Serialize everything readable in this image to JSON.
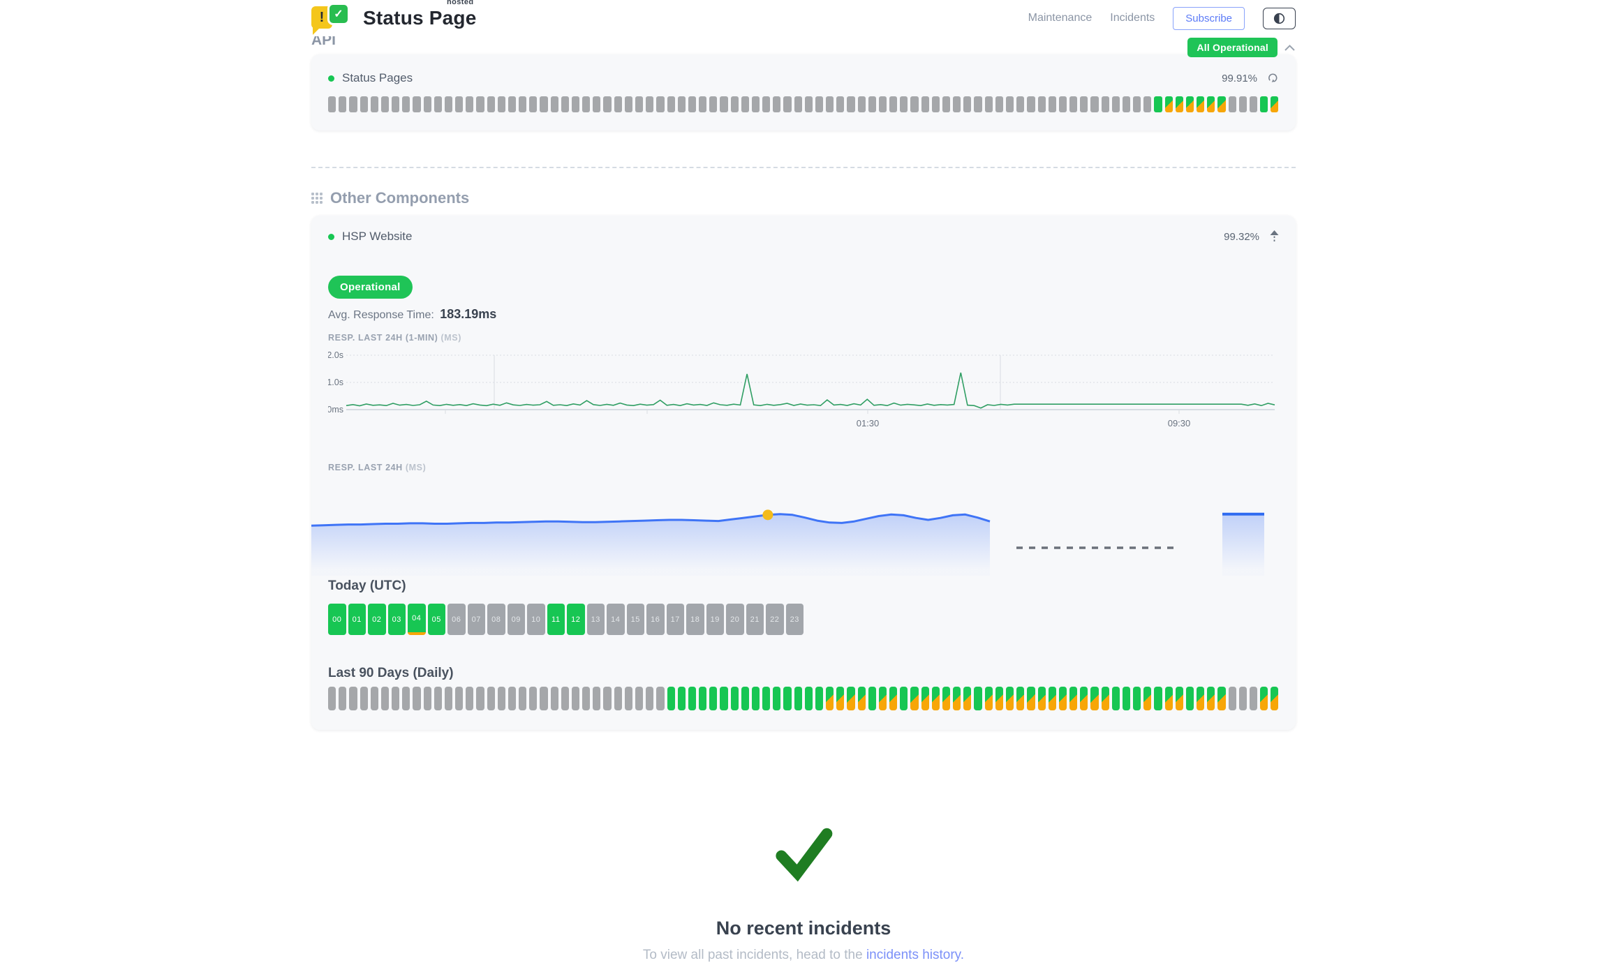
{
  "colors": {
    "green": "#1fc457",
    "bar_green": "#17c653",
    "orange": "#f7a608",
    "bar_gray": "#a5a7aa",
    "blue_accent": "#5c7bf7",
    "chart_blue": "#3f74f6",
    "chart_green": "#2f9e63",
    "marker_yellow": "#f3bb1c",
    "check_green": "#1f7d22",
    "logo_yellow": "#f4c61c"
  },
  "icons": {
    "logo_exclamation": "!",
    "logo_check": "✓"
  },
  "header": {
    "brand": {
      "name": "Status Page",
      "superscript": "hosted"
    },
    "nav": [
      {
        "label": "Maintenance"
      },
      {
        "label": "Incidents"
      }
    ],
    "subscribe_label": "Subscribe",
    "status_badge": {
      "label": "All Operational"
    }
  },
  "api_section": {
    "title": "API",
    "component": {
      "name": "Status Pages",
      "uptime_pct": "99.91%",
      "bars_rle": "78n,1u,6d,3n,1u,1d"
    }
  },
  "other_components": {
    "title": "Other Components",
    "component": {
      "name": "HSP Website",
      "uptime_pct": "99.32%",
      "status_label": "Operational",
      "avg_response_label": "Avg. Response Time:",
      "avg_response_value": "183.19ms",
      "chart_1min": {
        "label": "RESP. LAST 24H (1-MIN)",
        "unit": "(MS)",
        "y_ticks": [
          "2.0s",
          "1.0s",
          "0ms"
        ],
        "x_ticks": [
          "01:30",
          "09:30"
        ],
        "values_ms": [
          150,
          185,
          140,
          205,
          160,
          175,
          150,
          230,
          165,
          190,
          155,
          180,
          310,
          170,
          150,
          195,
          160,
          185,
          150,
          215,
          170,
          145,
          200,
          160,
          250,
          175,
          155,
          190,
          165,
          180,
          300,
          160,
          180,
          150,
          210,
          170,
          330,
          185,
          155,
          195,
          160,
          240,
          170,
          150,
          200,
          165,
          185,
          345,
          160,
          190,
          150,
          215,
          170,
          190,
          155,
          250,
          180,
          160,
          200,
          170,
          1310,
          175,
          150,
          195,
          160,
          185,
          230,
          155,
          205,
          165,
          180,
          150,
          360,
          170,
          190,
          155,
          215,
          170,
          380,
          160,
          185,
          150,
          240,
          165,
          195,
          175,
          150,
          205,
          160,
          185,
          170,
          190,
          1360,
          165,
          150,
          60,
          180,
          155,
          195,
          170,
          200,
          200,
          200,
          200,
          200,
          200,
          200,
          200,
          200,
          200,
          200,
          200,
          200,
          200,
          200,
          200,
          200,
          200,
          200,
          200,
          200,
          200,
          200,
          200,
          200,
          200,
          200,
          200,
          200,
          200,
          200,
          200,
          200,
          200,
          200,
          160,
          210,
          150,
          230,
          175
        ]
      },
      "chart_24h": {
        "label": "RESP. LAST 24H",
        "unit": "(MS)",
        "values_ms": [
          185,
          186,
          187,
          188,
          188,
          189,
          190,
          190,
          191,
          191,
          190,
          190,
          191,
          192,
          192,
          193,
          193,
          194,
          195,
          196,
          196,
          195,
          194,
          194,
          195,
          196,
          197,
          198,
          199,
          200,
          200,
          199,
          198,
          197,
          201,
          205,
          209,
          213,
          215,
          213,
          206,
          198,
          193,
          192,
          196,
          203,
          210,
          214,
          212,
          205,
          200,
          205,
          212,
          214,
          206,
          196
        ],
        "marker_index": 37,
        "has_data_gap": true,
        "tail_values_ms": [
          215,
          215
        ]
      },
      "today": {
        "title": "Today (UTC)",
        "hours": [
          {
            "label": "00",
            "status": "u"
          },
          {
            "label": "01",
            "status": "u"
          },
          {
            "label": "02",
            "status": "u"
          },
          {
            "label": "03",
            "status": "u"
          },
          {
            "label": "04",
            "status": "ud"
          },
          {
            "label": "05",
            "status": "u"
          },
          {
            "label": "06",
            "status": "n"
          },
          {
            "label": "07",
            "status": "n"
          },
          {
            "label": "08",
            "status": "n"
          },
          {
            "label": "09",
            "status": "n"
          },
          {
            "label": "10",
            "status": "n"
          },
          {
            "label": "11",
            "status": "u"
          },
          {
            "label": "12",
            "status": "u"
          },
          {
            "label": "13",
            "status": "n"
          },
          {
            "label": "14",
            "status": "n"
          },
          {
            "label": "15",
            "status": "n"
          },
          {
            "label": "16",
            "status": "n"
          },
          {
            "label": "17",
            "status": "n"
          },
          {
            "label": "18",
            "status": "n"
          },
          {
            "label": "19",
            "status": "n"
          },
          {
            "label": "20",
            "status": "n"
          },
          {
            "label": "21",
            "status": "n"
          },
          {
            "label": "22",
            "status": "n"
          },
          {
            "label": "23",
            "status": "n"
          }
        ]
      },
      "last90": {
        "title": "Last 90 Days (Daily)",
        "bars_rle": "32n,15u,4d,1u,2d,1u,6d,1u,12d,3u,1d,1u,2d,1u,3d,3n,2d"
      }
    }
  },
  "incidents": {
    "title": "No recent incidents",
    "subtext_prefix": "To view all past incidents, head to the ",
    "link_label": "incidents history",
    "subtext_suffix": "."
  }
}
